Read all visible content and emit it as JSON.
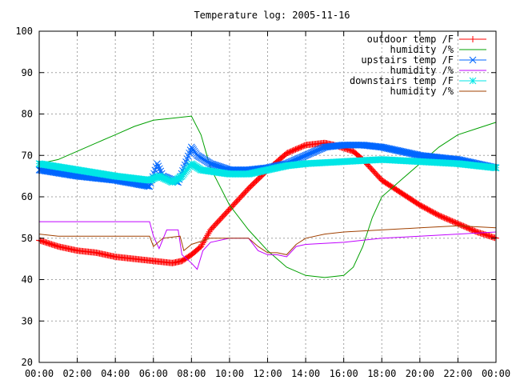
{
  "chart_data": {
    "type": "line",
    "title": "Temperature log: 2005-11-16",
    "xlabel": "",
    "ylabel": "",
    "xlim": [
      0,
      24
    ],
    "ylim": [
      20,
      100
    ],
    "grid": true,
    "legend_position": "top-right",
    "x_ticks": [
      "00:00",
      "02:00",
      "04:00",
      "06:00",
      "08:00",
      "10:00",
      "12:00",
      "14:00",
      "16:00",
      "18:00",
      "20:00",
      "22:00",
      "00:00"
    ],
    "y_ticks": [
      "100",
      "90",
      "80",
      "70",
      "60",
      "50",
      "40",
      "30",
      "20"
    ],
    "series": [
      {
        "name": "outdoor temp /F",
        "color": "#ff0000",
        "marker": "plus",
        "points": [
          [
            0,
            49.5
          ],
          [
            1,
            48
          ],
          [
            2,
            47
          ],
          [
            3,
            46.5
          ],
          [
            4,
            45.5
          ],
          [
            5,
            45
          ],
          [
            6,
            44.5
          ],
          [
            7,
            44
          ],
          [
            7.5,
            44.5
          ],
          [
            8,
            46
          ],
          [
            8.5,
            48
          ],
          [
            9,
            52
          ],
          [
            10,
            57
          ],
          [
            11,
            62
          ],
          [
            12,
            66.5
          ],
          [
            13,
            70.5
          ],
          [
            14,
            72.5
          ],
          [
            15,
            73
          ],
          [
            15.5,
            72.5
          ],
          [
            16.5,
            71
          ],
          [
            17,
            69
          ],
          [
            18,
            64
          ],
          [
            19,
            61
          ],
          [
            20,
            58
          ],
          [
            21,
            55.5
          ],
          [
            22,
            53.5
          ],
          [
            23,
            51.5
          ],
          [
            24,
            50
          ]
        ]
      },
      {
        "name": "humidity /%",
        "color": "#00a000",
        "marker": "none",
        "points": [
          [
            0,
            68
          ],
          [
            1,
            69
          ],
          [
            2,
            71
          ],
          [
            3,
            73
          ],
          [
            4,
            75
          ],
          [
            5,
            77
          ],
          [
            6,
            78.5
          ],
          [
            7,
            79
          ],
          [
            8,
            79.5
          ],
          [
            8.5,
            75
          ],
          [
            9,
            67
          ],
          [
            10,
            58
          ],
          [
            11,
            52
          ],
          [
            12,
            47
          ],
          [
            13,
            43
          ],
          [
            14,
            41
          ],
          [
            15,
            40.5
          ],
          [
            16,
            41
          ],
          [
            16.5,
            43
          ],
          [
            17,
            48
          ],
          [
            17.5,
            55
          ],
          [
            18,
            60
          ],
          [
            19,
            64
          ],
          [
            20,
            68
          ],
          [
            21,
            72
          ],
          [
            22,
            75
          ],
          [
            23,
            76.5
          ],
          [
            24,
            78
          ]
        ]
      },
      {
        "name": "upstairs temp /F",
        "color": "#0066ff",
        "marker": "x",
        "points": [
          [
            0,
            66.5
          ],
          [
            2,
            65
          ],
          [
            4,
            64
          ],
          [
            5.8,
            62.5
          ],
          [
            6.2,
            68
          ],
          [
            6.5,
            65
          ],
          [
            7.3,
            63.5
          ],
          [
            7.6,
            67
          ],
          [
            8,
            72
          ],
          [
            8.3,
            70
          ],
          [
            9,
            68
          ],
          [
            10,
            66.5
          ],
          [
            11,
            66.5
          ],
          [
            12,
            67
          ],
          [
            13,
            68
          ],
          [
            14,
            70
          ],
          [
            15,
            72
          ],
          [
            16,
            72.5
          ],
          [
            17,
            72.5
          ],
          [
            18,
            72
          ],
          [
            19,
            71
          ],
          [
            20,
            70
          ],
          [
            21,
            69.5
          ],
          [
            22,
            69
          ],
          [
            23,
            68
          ],
          [
            24,
            67
          ]
        ]
      },
      {
        "name": "humidity /%",
        "color": "#c000ff",
        "marker": "none",
        "points": [
          [
            0,
            54
          ],
          [
            2,
            54
          ],
          [
            4,
            54
          ],
          [
            5.8,
            54
          ],
          [
            6,
            50.5
          ],
          [
            6.3,
            47.5
          ],
          [
            6.7,
            52
          ],
          [
            7.3,
            52
          ],
          [
            7.5,
            46
          ],
          [
            8,
            44
          ],
          [
            8.3,
            42.5
          ],
          [
            8.6,
            47
          ],
          [
            9,
            49
          ],
          [
            10,
            50
          ],
          [
            11,
            50
          ],
          [
            11.5,
            47
          ],
          [
            12,
            46
          ],
          [
            12.5,
            46
          ],
          [
            13,
            45.5
          ],
          [
            13.5,
            48
          ],
          [
            14,
            48.5
          ],
          [
            16,
            49
          ],
          [
            18,
            50
          ],
          [
            20,
            50.5
          ],
          [
            22,
            51
          ],
          [
            24,
            51.5
          ]
        ]
      },
      {
        "name": "downstairs temp /F",
        "color": "#00e6e6",
        "marker": "star",
        "points": [
          [
            0,
            68
          ],
          [
            2,
            66.5
          ],
          [
            4,
            65
          ],
          [
            5.8,
            64
          ],
          [
            6.3,
            65
          ],
          [
            7,
            63.5
          ],
          [
            7.5,
            65
          ],
          [
            8,
            68
          ],
          [
            8.5,
            66.5
          ],
          [
            10,
            65.5
          ],
          [
            11,
            65.5
          ],
          [
            12,
            66.5
          ],
          [
            13,
            67.5
          ],
          [
            14,
            68
          ],
          [
            16,
            68.5
          ],
          [
            18,
            69
          ],
          [
            20,
            68.5
          ],
          [
            22,
            68
          ],
          [
            24,
            67
          ]
        ]
      },
      {
        "name": "humidity /%",
        "color": "#a04000",
        "marker": "none",
        "points": [
          [
            0,
            51
          ],
          [
            1,
            50.5
          ],
          [
            2,
            50.5
          ],
          [
            4,
            50.5
          ],
          [
            5.8,
            50.5
          ],
          [
            6,
            48
          ],
          [
            6.5,
            50
          ],
          [
            7.4,
            50.5
          ],
          [
            7.6,
            47
          ],
          [
            8,
            48.5
          ],
          [
            9,
            50
          ],
          [
            10,
            50
          ],
          [
            11,
            50
          ],
          [
            11.5,
            48
          ],
          [
            12,
            46.5
          ],
          [
            12.5,
            46.5
          ],
          [
            13,
            46
          ],
          [
            13.5,
            48.5
          ],
          [
            14,
            50
          ],
          [
            15,
            51
          ],
          [
            16,
            51.5
          ],
          [
            18,
            52
          ],
          [
            20,
            52.5
          ],
          [
            22,
            53
          ],
          [
            24,
            52.5
          ]
        ]
      }
    ]
  }
}
